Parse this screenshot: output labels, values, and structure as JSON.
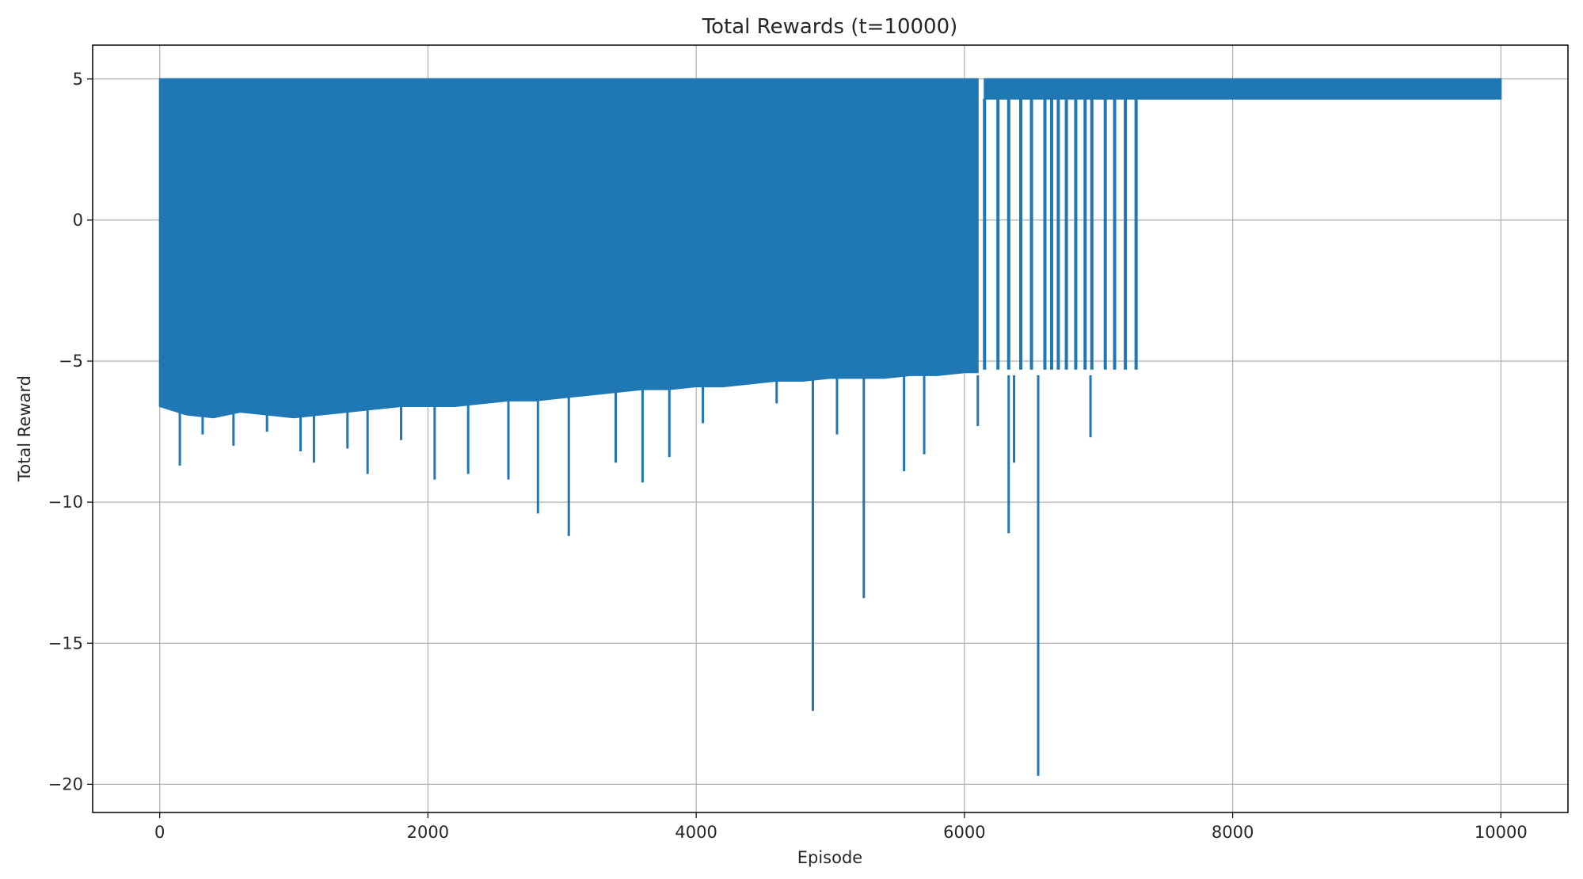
{
  "chart_data": {
    "type": "line",
    "title": "Total Rewards (t=10000)",
    "xlabel": "Episode",
    "ylabel": "Total Reward",
    "xlim": [
      -500,
      10500
    ],
    "ylim": [
      -21,
      6.2
    ],
    "xticks": [
      0,
      2000,
      4000,
      6000,
      8000,
      10000
    ],
    "xtick_labels": [
      "0",
      "2000",
      "4000",
      "6000",
      "8000",
      "10000"
    ],
    "yticks": [
      5,
      0,
      -5,
      -10,
      -15,
      -20
    ],
    "ytick_labels": [
      "5",
      "0",
      "−5",
      "−10",
      "−15",
      "−20"
    ],
    "grid": true,
    "series": [
      {
        "name": "Total Reward",
        "color": "#1f77b4",
        "band_upper": 5.0,
        "band_lower_early": [
          [
            0,
            -6.6
          ],
          [
            200,
            -6.9
          ],
          [
            400,
            -7.0
          ],
          [
            600,
            -6.8
          ],
          [
            800,
            -6.9
          ],
          [
            1000,
            -7.0
          ],
          [
            1200,
            -6.9
          ],
          [
            1400,
            -6.8
          ],
          [
            1600,
            -6.7
          ],
          [
            1800,
            -6.6
          ],
          [
            2000,
            -6.6
          ],
          [
            2200,
            -6.6
          ],
          [
            2400,
            -6.5
          ],
          [
            2600,
            -6.4
          ],
          [
            2800,
            -6.4
          ],
          [
            3000,
            -6.3
          ],
          [
            3200,
            -6.2
          ],
          [
            3400,
            -6.1
          ],
          [
            3600,
            -6.0
          ],
          [
            3800,
            -6.0
          ],
          [
            4000,
            -5.9
          ],
          [
            4200,
            -5.9
          ],
          [
            4400,
            -5.8
          ],
          [
            4600,
            -5.7
          ],
          [
            4800,
            -5.7
          ],
          [
            5000,
            -5.6
          ],
          [
            5200,
            -5.6
          ],
          [
            5400,
            -5.6
          ],
          [
            5600,
            -5.5
          ],
          [
            5800,
            -5.5
          ],
          [
            6000,
            -5.4
          ],
          [
            6100,
            -5.4
          ]
        ],
        "sparse_spikes": [
          6150,
          6250,
          6330,
          6420,
          6500,
          6600,
          6650,
          6700,
          6760,
          6830,
          6900,
          6950,
          7050,
          7120,
          7200,
          7280
        ],
        "band_lower_late": 4.3,
        "band_end_x": 10000,
        "deep_drops": [
          [
            150,
            -8.7
          ],
          [
            320,
            -7.6
          ],
          [
            550,
            -8.0
          ],
          [
            800,
            -7.5
          ],
          [
            1050,
            -8.2
          ],
          [
            1150,
            -8.6
          ],
          [
            1400,
            -8.1
          ],
          [
            1550,
            -9.0
          ],
          [
            1800,
            -7.8
          ],
          [
            2050,
            -9.2
          ],
          [
            2300,
            -9.0
          ],
          [
            2600,
            -9.2
          ],
          [
            2820,
            -10.4
          ],
          [
            3050,
            -11.2
          ],
          [
            3400,
            -8.6
          ],
          [
            3600,
            -9.3
          ],
          [
            3800,
            -8.4
          ],
          [
            4050,
            -7.2
          ],
          [
            4600,
            -6.5
          ],
          [
            4870,
            -17.4
          ],
          [
            5050,
            -7.6
          ],
          [
            5250,
            -13.4
          ],
          [
            5550,
            -8.9
          ],
          [
            5700,
            -8.3
          ],
          [
            6100,
            -7.3
          ],
          [
            6330,
            -11.1
          ],
          [
            6370,
            -8.6
          ],
          [
            6550,
            -19.7
          ],
          [
            6940,
            -7.7
          ]
        ]
      }
    ]
  }
}
